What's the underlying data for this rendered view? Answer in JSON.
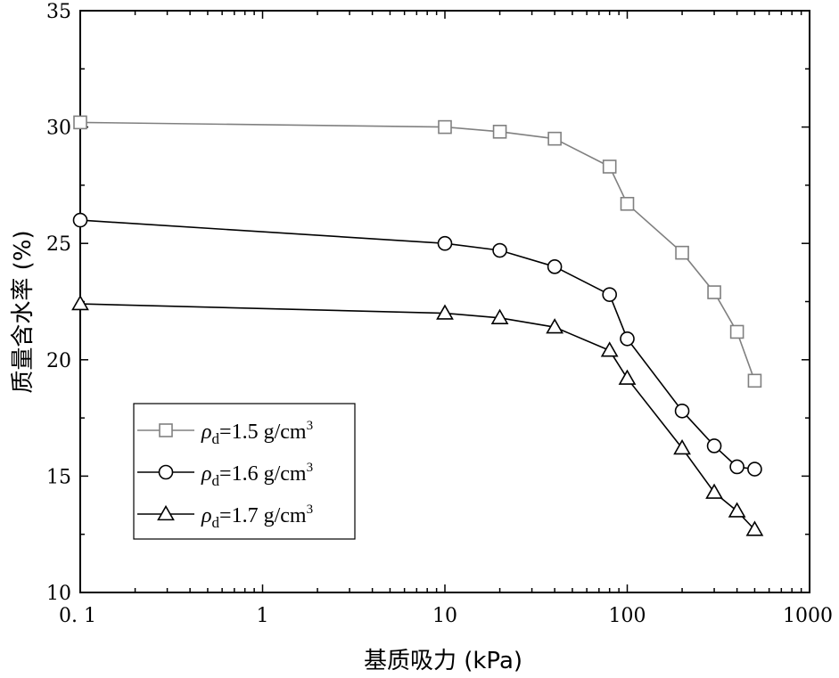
{
  "chart_data": {
    "type": "line",
    "title": "",
    "xlabel": "基质吸力 (kPa)",
    "ylabel": "质量含水率 (%)",
    "x_scale": "log",
    "xlim": [
      0.1,
      1000
    ],
    "ylim": [
      10,
      35
    ],
    "x_ticks": [
      0.1,
      1,
      10,
      100,
      1000
    ],
    "x_tick_labels": [
      "0. 1",
      "1",
      "10",
      "100",
      "1000"
    ],
    "y_ticks": [
      10,
      15,
      20,
      25,
      30,
      35
    ],
    "y_tick_labels": [
      "10",
      "15",
      "20",
      "25",
      "30",
      "35"
    ],
    "grid": false,
    "legend_position": "lower-left",
    "series": [
      {
        "name_prefix": "ρ",
        "name_sub": "d",
        "name_main": "=1.5 g/cm",
        "name_sup": "3",
        "marker": "square",
        "color": "#808080",
        "points": [
          [
            0.1,
            30.2
          ],
          [
            10,
            30.0
          ],
          [
            20,
            29.8
          ],
          [
            40,
            29.5
          ],
          [
            80,
            28.3
          ],
          [
            100,
            26.7
          ],
          [
            200,
            24.6
          ],
          [
            300,
            22.9
          ],
          [
            400,
            21.2
          ],
          [
            500,
            19.1
          ]
        ]
      },
      {
        "name_prefix": "ρ",
        "name_sub": "d",
        "name_main": "=1.6 g/cm",
        "name_sup": "3",
        "marker": "circle",
        "color": "#000000",
        "points": [
          [
            0.1,
            26.0
          ],
          [
            10,
            25.0
          ],
          [
            20,
            24.7
          ],
          [
            40,
            24.0
          ],
          [
            80,
            22.8
          ],
          [
            100,
            20.9
          ],
          [
            200,
            17.8
          ],
          [
            300,
            16.3
          ],
          [
            400,
            15.4
          ],
          [
            500,
            15.3
          ]
        ]
      },
      {
        "name_prefix": "ρ",
        "name_sub": "d",
        "name_main": "=1.7 g/cm",
        "name_sup": "3",
        "marker": "triangle",
        "color": "#000000",
        "points": [
          [
            0.1,
            22.4
          ],
          [
            10,
            22.0
          ],
          [
            20,
            21.8
          ],
          [
            40,
            21.4
          ],
          [
            80,
            20.4
          ],
          [
            100,
            19.2
          ],
          [
            200,
            16.2
          ],
          [
            300,
            14.3
          ],
          [
            400,
            13.5
          ],
          [
            500,
            12.7
          ]
        ]
      }
    ]
  }
}
